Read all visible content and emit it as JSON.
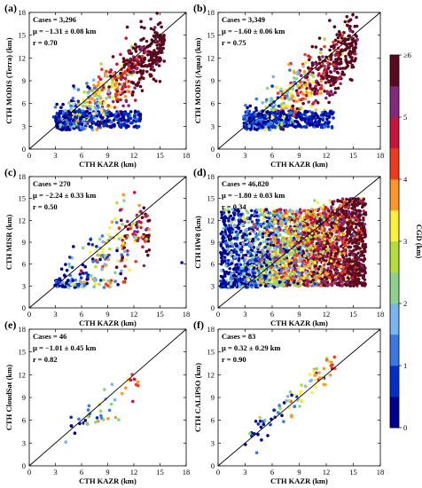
{
  "colors": {
    "colormap": [
      "#00008f",
      "#0030c8",
      "#3a78e6",
      "#78b4f0",
      "#8cd28c",
      "#b4dc3c",
      "#fff03c",
      "#ff9628",
      "#f03c1e",
      "#c8143c",
      "#82287d",
      "#5a0a1e"
    ]
  },
  "chart_data": [
    {
      "panel": "(a)",
      "type": "scatter",
      "xlabel": "CTH KAZR  (km)",
      "ylabel": "CTH MODIS (Terra)  (km)",
      "xlim": [
        0,
        18
      ],
      "ylim": [
        0,
        18
      ],
      "xticks": [
        "0",
        "3",
        "6",
        "9",
        "12",
        "15",
        "18"
      ],
      "yticks": [
        "0",
        "3",
        "6",
        "9",
        "12",
        "15",
        "18"
      ],
      "stats": {
        "cases": "Cases = 3,296",
        "mu": "μ = −1.31 ± 0.08 km",
        "r": "r = 0.70"
      },
      "cases": 3296,
      "mu": -1.31,
      "mu_err": 0.08,
      "r": 0.7,
      "points_shown": 900,
      "seed": 11
    },
    {
      "panel": "(b)",
      "type": "scatter",
      "xlabel": "CTH KAZR  (km)",
      "ylabel": "CTH MODIS (Aqua)  (km)",
      "xlim": [
        0,
        18
      ],
      "ylim": [
        0,
        18
      ],
      "xticks": [
        "0",
        "3",
        "6",
        "9",
        "12",
        "15",
        "18"
      ],
      "yticks": [
        "0",
        "3",
        "6",
        "9",
        "12",
        "15",
        "18"
      ],
      "stats": {
        "cases": "Cases = 3,349",
        "mu": "μ = −1.60 ± 0.06 km",
        "r": "r = 0.75"
      },
      "cases": 3349,
      "mu": -1.6,
      "mu_err": 0.06,
      "r": 0.75,
      "points_shown": 900,
      "seed": 23
    },
    {
      "panel": "(c)",
      "type": "scatter",
      "xlabel": "CTH KAZR  (km)",
      "ylabel": "CTH MISR  (km)",
      "xlim": [
        0,
        18
      ],
      "ylim": [
        0,
        18
      ],
      "xticks": [
        "0",
        "3",
        "6",
        "9",
        "12",
        "15",
        "18"
      ],
      "yticks": [
        "0",
        "3",
        "6",
        "9",
        "12",
        "15",
        "18"
      ],
      "stats": {
        "cases": "Cases = 270",
        "mu": "μ = −2.24 ± 0.33 km",
        "r": "r = 0.50"
      },
      "cases": 270,
      "mu": -2.24,
      "mu_err": 0.33,
      "r": 0.5,
      "points_shown": 270,
      "seed": 37
    },
    {
      "panel": "(d)",
      "type": "scatter",
      "xlabel": "CTH KAZR  (km)",
      "ylabel": "CTH HW8  (km)",
      "xlim": [
        0,
        18
      ],
      "ylim": [
        0,
        18
      ],
      "xticks": [
        "0",
        "3",
        "6",
        "9",
        "12",
        "15",
        "18"
      ],
      "yticks": [
        "0",
        "3",
        "6",
        "9",
        "12",
        "15",
        "18"
      ],
      "stats": {
        "cases": "Cases = 46,820",
        "mu": "μ = −1.80 ± 0.03 km",
        "r": "r = 0.34"
      },
      "cases": 46820,
      "mu": -1.8,
      "mu_err": 0.03,
      "r": 0.34,
      "points_shown": 3200,
      "seed": 41
    },
    {
      "panel": "(e)",
      "type": "scatter",
      "xlabel": "CTH KAZR  (km)",
      "ylabel": "CTH CloudSat  (km)",
      "xlim": [
        0,
        18
      ],
      "ylim": [
        0,
        18
      ],
      "xticks": [
        "0",
        "3",
        "6",
        "9",
        "12",
        "15",
        "18"
      ],
      "yticks": [
        "0",
        "3",
        "6",
        "9",
        "12",
        "15",
        "18"
      ],
      "stats": {
        "cases": "Cases = 46",
        "mu": "μ = −1.01 ± 0.45 km",
        "r": "r = 0.82"
      },
      "cases": 46,
      "mu": -1.01,
      "mu_err": 0.45,
      "r": 0.82,
      "points_shown": 46,
      "seed": 53
    },
    {
      "panel": "(f)",
      "type": "scatter",
      "xlabel": "CTH KAZR  (km)",
      "ylabel": "CTH CALIPSO  (km)",
      "xlim": [
        0,
        18
      ],
      "ylim": [
        0,
        18
      ],
      "xticks": [
        "0",
        "3",
        "6",
        "9",
        "12",
        "15",
        "18"
      ],
      "yticks": [
        "0",
        "3",
        "6",
        "9",
        "12",
        "15",
        "18"
      ],
      "stats": {
        "cases": "Cases = 83",
        "mu": "μ = 0.32 ± 0.29 km",
        "r": "r = 0.90"
      },
      "cases": 83,
      "mu": 0.32,
      "mu_err": 0.29,
      "r": 0.9,
      "points_shown": 83,
      "seed": 67
    }
  ],
  "colorbar": {
    "title": "CGD (km)",
    "range": [
      0,
      6
    ],
    "ticks": [
      "0",
      "1",
      "2",
      "3",
      "4",
      "5",
      "≥6"
    ]
  }
}
